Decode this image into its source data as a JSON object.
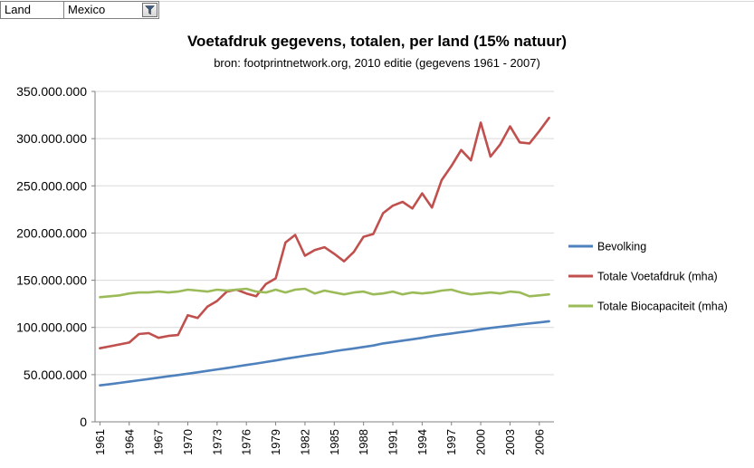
{
  "filter": {
    "field_label": "Land",
    "selected_value": "Mexico"
  },
  "chart_data": {
    "type": "line",
    "title": "Voetafdruk gegevens, totalen, per land (15% natuur)",
    "subtitle": "bron: footprintnetwork.org, 2010 editie (gegevens 1961 - 2007)",
    "x": [
      1961,
      1962,
      1963,
      1964,
      1965,
      1966,
      1967,
      1968,
      1969,
      1970,
      1971,
      1972,
      1973,
      1974,
      1975,
      1976,
      1977,
      1978,
      1979,
      1980,
      1981,
      1982,
      1983,
      1984,
      1985,
      1986,
      1987,
      1988,
      1989,
      1990,
      1991,
      1992,
      1993,
      1994,
      1995,
      1996,
      1997,
      1998,
      1999,
      2000,
      2001,
      2002,
      2003,
      2004,
      2005,
      2006,
      2007
    ],
    "x_label_interval": 3,
    "ylim": [
      0,
      350000000
    ],
    "y_tick_step": 50000000,
    "y_tick_labels": [
      "0",
      "50.000.000",
      "100.000.000",
      "150.000.000",
      "200.000.000",
      "250.000.000",
      "300.000.000",
      "350.000.000"
    ],
    "grid": true,
    "legend_position": "right",
    "axis_color": "#808080",
    "grid_color": "#d9d9d9",
    "series": [
      {
        "name": "Bevolking",
        "color": "#4f81bd",
        "values": [
          38600000,
          39900000,
          41200000,
          42600000,
          44000000,
          45400000,
          46800000,
          48200000,
          49600000,
          51000000,
          52500000,
          54000000,
          55500000,
          57000000,
          58600000,
          60200000,
          61800000,
          63400000,
          65000000,
          66800000,
          68400000,
          70000000,
          71500000,
          73000000,
          74800000,
          76300000,
          77800000,
          79300000,
          80800000,
          83000000,
          84500000,
          86000000,
          87500000,
          89000000,
          90800000,
          92200000,
          93600000,
          95000000,
          96400000,
          98000000,
          99400000,
          100600000,
          101800000,
          103000000,
          104200000,
          105300000,
          106500000
        ]
      },
      {
        "name": "Totale Voetafdruk (mha)",
        "color": "#c0504d",
        "values": [
          78000000,
          80000000,
          82000000,
          84000000,
          93000000,
          94000000,
          89000000,
          91000000,
          92000000,
          113000000,
          110000000,
          122000000,
          128000000,
          138000000,
          140000000,
          136000000,
          133000000,
          146000000,
          152000000,
          190000000,
          198000000,
          176000000,
          182000000,
          185000000,
          178000000,
          170000000,
          180000000,
          196000000,
          199000000,
          221000000,
          229000000,
          233000000,
          226000000,
          242000000,
          227000000,
          256000000,
          271000000,
          288000000,
          277000000,
          317000000,
          281000000,
          294000000,
          313000000,
          296000000,
          295000000,
          308000000,
          322000000
        ]
      },
      {
        "name": "Totale Biocapaciteit (mha)",
        "color": "#9bbb59",
        "values": [
          132000000,
          133000000,
          134000000,
          136000000,
          137000000,
          137000000,
          138000000,
          137000000,
          138000000,
          140000000,
          139000000,
          138000000,
          140000000,
          139000000,
          140000000,
          141000000,
          138000000,
          137000000,
          140000000,
          137000000,
          140000000,
          141000000,
          136000000,
          139000000,
          137000000,
          135000000,
          137000000,
          138000000,
          135000000,
          136000000,
          138000000,
          135000000,
          137000000,
          136000000,
          137000000,
          139000000,
          140000000,
          137000000,
          135000000,
          136000000,
          137000000,
          136000000,
          138000000,
          137000000,
          133000000,
          134000000,
          135000000
        ]
      }
    ]
  }
}
